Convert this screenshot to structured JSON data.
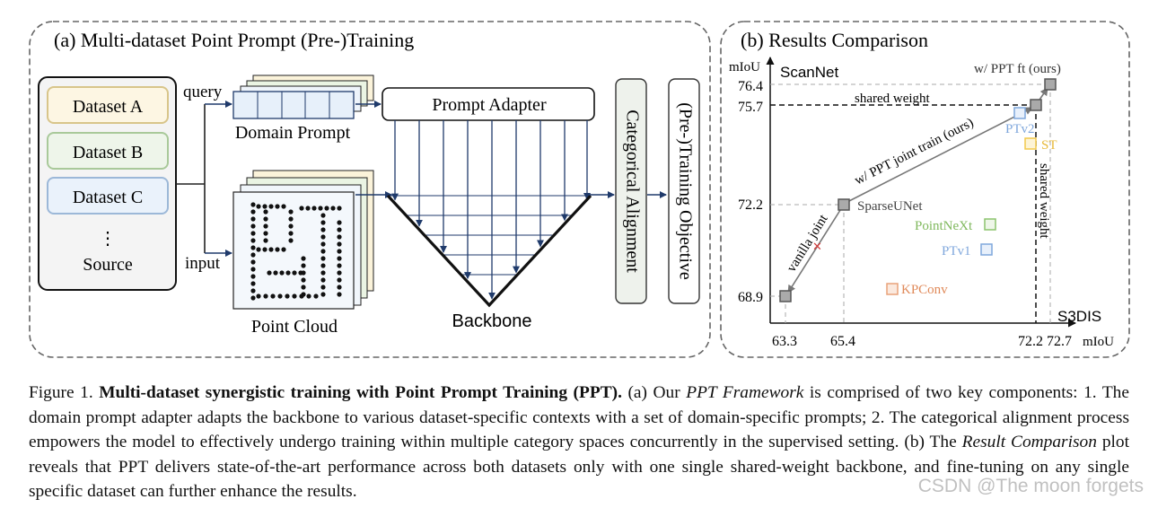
{
  "panel_a": {
    "title": "(a) Multi-dataset Point Prompt (Pre-)Training",
    "datasets": [
      "Dataset A",
      "Dataset B",
      "Dataset C"
    ],
    "ellipsis": "⋮",
    "source": "Source",
    "query_label": "query",
    "input_label": "input",
    "domain_prompt_label": "Domain Prompt",
    "point_cloud_label": "Point Cloud",
    "prompt_adapter_label": "Prompt Adapter",
    "backbone_label": "Backbone",
    "categorical_alignment_label": "Categorical Alignment",
    "objective_label": "(Pre-)Training Objective",
    "colors": {
      "dataset_a": "#fdf6e3",
      "dataset_a_border": "#d8c58a",
      "dataset_b": "#eef5ea",
      "dataset_b_border": "#a9c99a",
      "dataset_c": "#eaf2fb",
      "dataset_c_border": "#9cb8d8"
    }
  },
  "panel_b": {
    "title": "(b) Results Comparison",
    "chart_data": {
      "type": "scatter",
      "xlabel": "mIoU",
      "ylabel": "mIoU",
      "x_dataset": "S3DIS",
      "y_dataset": "ScanNet",
      "x_ticks": [
        "63.3",
        "65.4",
        "72.2",
        "72.7"
      ],
      "y_ticks": [
        "76.4",
        "75.7",
        "72.2",
        "68.9"
      ],
      "points": [
        {
          "name": "w/ PPT ft (ours)",
          "x": 72.7,
          "y": 76.4,
          "color": "#888888"
        },
        {
          "name": "",
          "x": 72.2,
          "y": 75.7,
          "color": "#888888"
        },
        {
          "name": "PTv2",
          "x": 72.0,
          "y": 75.4,
          "color": "#7fa7dc"
        },
        {
          "name": "ST",
          "x": 72.2,
          "y": 74.5,
          "color": "#f2c94c"
        },
        {
          "name": "SparseUNet",
          "x": 65.4,
          "y": 72.2,
          "color": "#888888"
        },
        {
          "name": "PointNeXt",
          "x": 70.5,
          "y": 71.5,
          "color": "#8cc46d"
        },
        {
          "name": "PTv1",
          "x": 70.4,
          "y": 70.6,
          "color": "#7fa7dc"
        },
        {
          "name": "KPConv",
          "x": 67.1,
          "y": 69.3,
          "color": "#e9a27a"
        },
        {
          "name": "",
          "x": 63.3,
          "y": 68.9,
          "color": "#888888"
        }
      ],
      "annotations": [
        "shared weight",
        "w/ PPT joint train (ours)",
        "vanilla joint",
        "shared weight"
      ]
    }
  },
  "caption": {
    "label": "Figure 1.",
    "bold": "Multi-dataset synergistic training with Point Prompt Training (PPT).",
    "p1": " (a) Our ",
    "i1": "PPT Framework",
    "p2": " is comprised of two key components: 1. The domain prompt adapter adapts the backbone to various dataset-specific contexts with a set of domain-specific prompts; 2. The categorical alignment process empowers the model to effectively undergo training within multiple category spaces concurrently in the supervised setting. (b) The ",
    "i2": "Result Comparison",
    "p3": " plot reveals that PPT delivers state-of-the-art performance across both datasets only with one single shared-weight backbone, and fine-tuning on any single specific dataset can further enhance the results."
  },
  "watermark": "CSDN @The moon forgets"
}
